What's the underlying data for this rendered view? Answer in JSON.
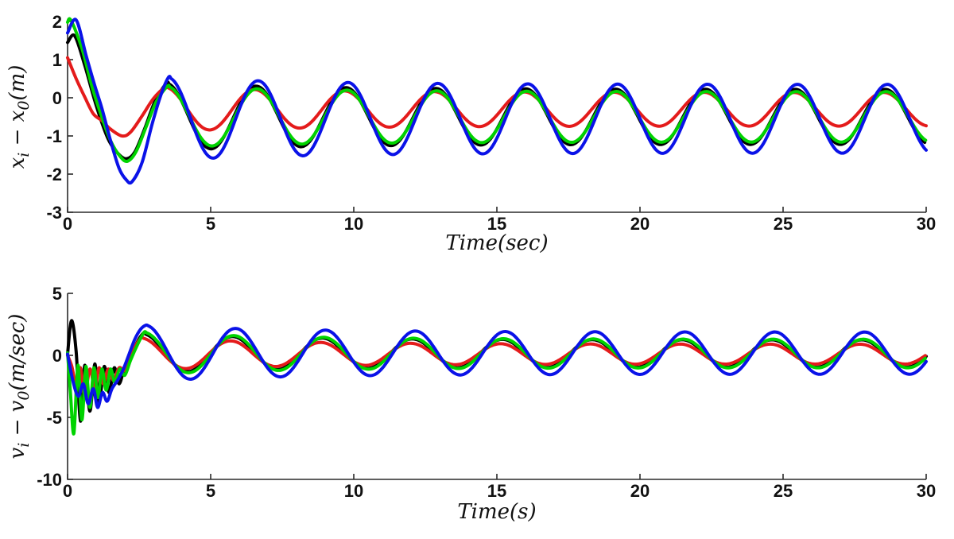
{
  "figure": {
    "background": "#ffffff",
    "axis_color": "#2a2a2a",
    "text_color": "#111111"
  },
  "chart_data": [
    {
      "type": "line",
      "id": "position-error-plot",
      "title": "",
      "xlabel": "Time(sec)",
      "ylabel": "x_i − x_0(m)",
      "xlim": [
        0,
        30
      ],
      "ylim": [
        -3,
        2
      ],
      "xticks": [
        0,
        5,
        10,
        15,
        20,
        25,
        30
      ],
      "yticks": [
        2,
        1,
        0,
        -1,
        -2,
        -3
      ],
      "grid": false,
      "legend": "none",
      "period": 3.14,
      "amp_decay_tau": 5,
      "series": [
        {
          "name": "follower-1-black",
          "color": "#000000",
          "mean": -0.5,
          "amp_steady": 0.72,
          "amp_initial": 0.88,
          "t_peak": 3.45,
          "transient": [
            [
              0,
              1.45
            ],
            [
              0.25,
              1.62
            ],
            [
              0.6,
              0.85
            ],
            [
              1.0,
              -0.2
            ],
            [
              1.4,
              -1.05
            ],
            [
              1.75,
              -1.45
            ],
            [
              2.05,
              -1.6
            ],
            [
              2.35,
              -1.42
            ],
            [
              2.7,
              -0.8
            ],
            [
              3.05,
              -0.1
            ],
            [
              3.45,
              0.38
            ]
          ]
        },
        {
          "name": "follower-2-red",
          "color": "#e41b1b",
          "mean": -0.3,
          "amp_steady": 0.44,
          "amp_initial": 0.58,
          "t_peak": 3.4,
          "transient": [
            [
              0,
              1.05
            ],
            [
              0.3,
              0.5
            ],
            [
              0.6,
              0.02
            ],
            [
              0.9,
              -0.42
            ],
            [
              1.2,
              -0.6
            ],
            [
              1.5,
              -0.82
            ],
            [
              1.9,
              -1.0
            ],
            [
              2.2,
              -0.9
            ],
            [
              2.6,
              -0.48
            ],
            [
              3.0,
              -0.02
            ],
            [
              3.4,
              0.28
            ]
          ]
        },
        {
          "name": "follower-3-green",
          "color": "#00d300",
          "mean": -0.5,
          "amp_steady": 0.66,
          "amp_initial": 0.8,
          "t_peak": 3.48,
          "transient": [
            [
              0,
              1.98
            ],
            [
              0.12,
              2.03
            ],
            [
              0.5,
              1.3
            ],
            [
              0.85,
              0.3
            ],
            [
              1.15,
              -0.4
            ],
            [
              1.5,
              -1.12
            ],
            [
              1.85,
              -1.55
            ],
            [
              2.1,
              -1.66
            ],
            [
              2.4,
              -1.4
            ],
            [
              2.75,
              -0.75
            ],
            [
              3.1,
              -0.1
            ],
            [
              3.48,
              0.3
            ]
          ]
        },
        {
          "name": "follower-4-blue",
          "color": "#0a12e8",
          "mean": -0.55,
          "amp_steady": 0.9,
          "amp_initial": 1.08,
          "t_peak": 3.52,
          "transient": [
            [
              0,
              1.7
            ],
            [
              0.3,
              2.04
            ],
            [
              0.65,
              1.1
            ],
            [
              0.95,
              0.32
            ],
            [
              1.2,
              -0.28
            ],
            [
              1.5,
              -1.12
            ],
            [
              1.8,
              -1.85
            ],
            [
              2.05,
              -2.15
            ],
            [
              2.25,
              -2.2
            ],
            [
              2.6,
              -1.7
            ],
            [
              2.95,
              -0.7
            ],
            [
              3.25,
              0.05
            ],
            [
              3.52,
              0.53
            ]
          ]
        }
      ]
    },
    {
      "type": "line",
      "id": "velocity-error-plot",
      "title": "",
      "xlabel": "Time(s)",
      "ylabel": "v_i − v_0(m/sec)",
      "xlim": [
        0,
        30
      ],
      "ylim": [
        -10,
        5
      ],
      "xticks": [
        0,
        5,
        10,
        15,
        20,
        25,
        30
      ],
      "yticks": [
        5,
        0,
        -5,
        -10
      ],
      "grid": false,
      "legend": "none",
      "period": 3.14,
      "amp_decay_tau": 5,
      "series": [
        {
          "name": "follower-1-black",
          "color": "#000000",
          "mean": 0.15,
          "amp_steady": 1.1,
          "amp_initial": 1.6,
          "t_peak": 2.63,
          "transient": [
            [
              0,
              0.1
            ],
            [
              0.14,
              2.8
            ],
            [
              0.3,
              0.3
            ],
            [
              0.45,
              -5.3
            ],
            [
              0.6,
              -0.8
            ],
            [
              0.78,
              -4.5
            ],
            [
              0.95,
              -0.7
            ],
            [
              1.1,
              -3.8
            ],
            [
              1.28,
              -0.9
            ],
            [
              1.45,
              -3.0
            ],
            [
              1.63,
              -1.0
            ],
            [
              1.8,
              -2.3
            ],
            [
              2.0,
              -0.9
            ],
            [
              2.2,
              -0.2
            ],
            [
              2.42,
              1.0
            ],
            [
              2.63,
              1.75
            ]
          ]
        },
        {
          "name": "follower-2-red",
          "color": "#e41b1b",
          "mean": 0.1,
          "amp_steady": 0.8,
          "amp_initial": 1.3,
          "t_peak": 2.57,
          "transient": [
            [
              0,
              0.0
            ],
            [
              0.15,
              -0.9
            ],
            [
              0.3,
              -2.4
            ],
            [
              0.45,
              -1.0
            ],
            [
              0.6,
              -3.3
            ],
            [
              0.78,
              -1.1
            ],
            [
              0.95,
              -2.7
            ],
            [
              1.1,
              -1.0
            ],
            [
              1.25,
              -2.3
            ],
            [
              1.42,
              -1.1
            ],
            [
              1.6,
              -2.0
            ],
            [
              1.8,
              -1.0
            ],
            [
              2.0,
              -1.2
            ],
            [
              2.18,
              -0.1
            ],
            [
              2.38,
              0.8
            ],
            [
              2.57,
              1.4
            ]
          ]
        },
        {
          "name": "follower-3-green",
          "color": "#00d300",
          "mean": 0.15,
          "amp_steady": 1.15,
          "amp_initial": 1.7,
          "t_peak": 2.67,
          "transient": [
            [
              0,
              0.2
            ],
            [
              0.1,
              -3.0
            ],
            [
              0.22,
              -6.3
            ],
            [
              0.36,
              -0.8
            ],
            [
              0.5,
              -5.2
            ],
            [
              0.64,
              -0.9
            ],
            [
              0.78,
              -4.2
            ],
            [
              0.92,
              -1.0
            ],
            [
              1.06,
              -3.4
            ],
            [
              1.2,
              -1.1
            ],
            [
              1.35,
              -2.8
            ],
            [
              1.5,
              -1.1
            ],
            [
              1.65,
              -2.2
            ],
            [
              1.82,
              -1.1
            ],
            [
              2.0,
              -1.6
            ],
            [
              2.2,
              -0.4
            ],
            [
              2.45,
              0.9
            ],
            [
              2.67,
              1.85
            ]
          ]
        },
        {
          "name": "follower-4-blue",
          "color": "#0a12e8",
          "mean": 0.18,
          "amp_steady": 1.7,
          "amp_initial": 2.25,
          "t_peak": 2.73,
          "transient": [
            [
              0,
              0.1
            ],
            [
              0.2,
              -2.2
            ],
            [
              0.38,
              -3.3
            ],
            [
              0.55,
              -2.3
            ],
            [
              0.72,
              -3.9
            ],
            [
              0.9,
              -2.7
            ],
            [
              1.05,
              -4.2
            ],
            [
              1.22,
              -3.0
            ],
            [
              1.38,
              -3.7
            ],
            [
              1.55,
              -2.7
            ],
            [
              1.75,
              -2.0
            ],
            [
              1.95,
              -1.1
            ],
            [
              2.15,
              0.1
            ],
            [
              2.35,
              1.3
            ],
            [
              2.55,
              2.1
            ],
            [
              2.73,
              2.43
            ]
          ]
        }
      ]
    }
  ]
}
